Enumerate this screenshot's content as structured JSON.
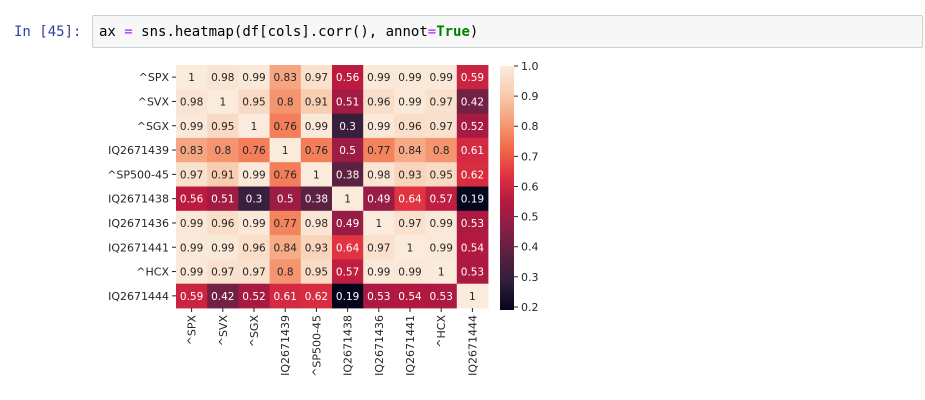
{
  "cell": {
    "prompt": "In [45]:",
    "code": {
      "var": "ax",
      "assign": "=",
      "call": "sns.heatmap(df[cols].corr(), annot",
      "eq": "=",
      "kw": "True",
      "close": ")"
    }
  },
  "chart_data": {
    "type": "heatmap",
    "labels": [
      "^SPX",
      "^SVX",
      "^SGX",
      "IQ2671439",
      "^SP500-45",
      "IQ2671438",
      "IQ2671436",
      "IQ2671441",
      "^HCX",
      "IQ2671444"
    ],
    "values": [
      [
        1,
        0.98,
        0.99,
        0.83,
        0.97,
        0.56,
        0.99,
        0.99,
        0.99,
        0.59
      ],
      [
        0.98,
        1,
        0.95,
        0.8,
        0.91,
        0.51,
        0.96,
        0.99,
        0.97,
        0.42
      ],
      [
        0.99,
        0.95,
        1,
        0.76,
        0.99,
        0.3,
        0.99,
        0.96,
        0.97,
        0.52
      ],
      [
        0.83,
        0.8,
        0.76,
        1,
        0.76,
        0.5,
        0.77,
        0.84,
        0.8,
        0.61
      ],
      [
        0.97,
        0.91,
        0.99,
        0.76,
        1,
        0.38,
        0.98,
        0.93,
        0.95,
        0.62
      ],
      [
        0.56,
        0.51,
        0.3,
        0.5,
        0.38,
        1,
        0.49,
        0.64,
        0.57,
        0.19
      ],
      [
        0.99,
        0.96,
        0.99,
        0.77,
        0.98,
        0.49,
        1,
        0.97,
        0.99,
        0.53
      ],
      [
        0.99,
        0.99,
        0.96,
        0.84,
        0.93,
        0.64,
        0.97,
        1,
        0.99,
        0.54
      ],
      [
        0.99,
        0.97,
        0.97,
        0.8,
        0.95,
        0.57,
        0.99,
        0.99,
        1,
        0.53
      ],
      [
        0.59,
        0.42,
        0.52,
        0.61,
        0.62,
        0.19,
        0.53,
        0.54,
        0.53,
        1
      ]
    ],
    "colorbar": {
      "min": 0.19,
      "max": 1.0,
      "ticks": [
        0.2,
        0.3,
        0.4,
        0.5,
        0.6,
        0.7,
        0.8,
        0.9,
        1.0
      ],
      "tick_labels": [
        "0.2",
        "0.3",
        "0.4",
        "0.5",
        "0.6",
        "0.7",
        "0.8",
        "0.9",
        "1.0"
      ]
    },
    "colormap": "rocket",
    "colormap_stops": [
      "#03051a",
      "#2e1e3c",
      "#57213f",
      "#881f47",
      "#b7183f",
      "#e13342",
      "#f26c48",
      "#f5a17a",
      "#f8cdb0",
      "#faebdd"
    ]
  }
}
